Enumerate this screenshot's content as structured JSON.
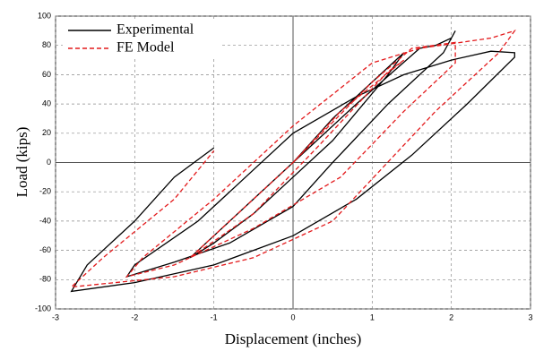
{
  "chart_data": {
    "type": "line",
    "xlabel": "Displacement (inches)",
    "ylabel": "Load (kips)",
    "xlim": [
      -3,
      3
    ],
    "ylim": [
      -100,
      100
    ],
    "xticks": [
      -3,
      -2,
      -1,
      0,
      1,
      2,
      3
    ],
    "yticks": [
      -100,
      -80,
      -60,
      -40,
      -20,
      0,
      20,
      40,
      60,
      80,
      100
    ],
    "grid": true,
    "legend": "upper left",
    "series": [
      {
        "name": "Experimental",
        "color": "#000000",
        "style": "solid",
        "x": [
          0,
          0.5,
          1,
          1.4,
          1.2,
          0.5,
          0,
          -0.5,
          -1,
          -1.3,
          -1,
          -0.5,
          0,
          0.8,
          1.6,
          1.8,
          2,
          2.05,
          1.9,
          1.2,
          0.5,
          0,
          -0.8,
          -1.5,
          -2.1,
          -2,
          -1.2,
          -0.5,
          0,
          0.8,
          1.4,
          2,
          2.5,
          2.8,
          2.8,
          2.2,
          1.5,
          0.8,
          0,
          -1,
          -2,
          -2.8,
          -2.6,
          -2,
          -1.5,
          -1
        ],
        "values": [
          0,
          30,
          55,
          75,
          60,
          15,
          -10,
          -35,
          -55,
          -65,
          -50,
          -25,
          0,
          40,
          78,
          80,
          85,
          90,
          75,
          40,
          0,
          -30,
          -55,
          -68,
          -78,
          -70,
          -40,
          -5,
          20,
          45,
          60,
          70,
          76,
          75,
          72,
          40,
          5,
          -25,
          -50,
          -70,
          -82,
          -88,
          -70,
          -40,
          -10,
          10
        ]
      },
      {
        "name": "FE Model",
        "color": "#e31a1c",
        "style": "dashed",
        "x": [
          0,
          0.6,
          1.4,
          1.2,
          0.3,
          -0.5,
          -1.3,
          -1.1,
          0,
          1,
          1.5,
          2.05,
          2.05,
          1.4,
          0.6,
          -0.5,
          -1.5,
          -2.1,
          -1.9,
          -1,
          0,
          1,
          1.6,
          2.5,
          2.8,
          2.6,
          1.8,
          0.5,
          -0.5,
          -1.5,
          -2.8,
          -2.4,
          -1.5,
          -1
        ],
        "values": [
          0,
          35,
          70,
          62,
          10,
          -35,
          -65,
          -55,
          0,
          55,
          78,
          82,
          68,
          35,
          -10,
          -45,
          -70,
          -78,
          -65,
          -25,
          25,
          68,
          78,
          85,
          90,
          75,
          35,
          -40,
          -65,
          -78,
          -85,
          -65,
          -25,
          8
        ]
      }
    ]
  }
}
